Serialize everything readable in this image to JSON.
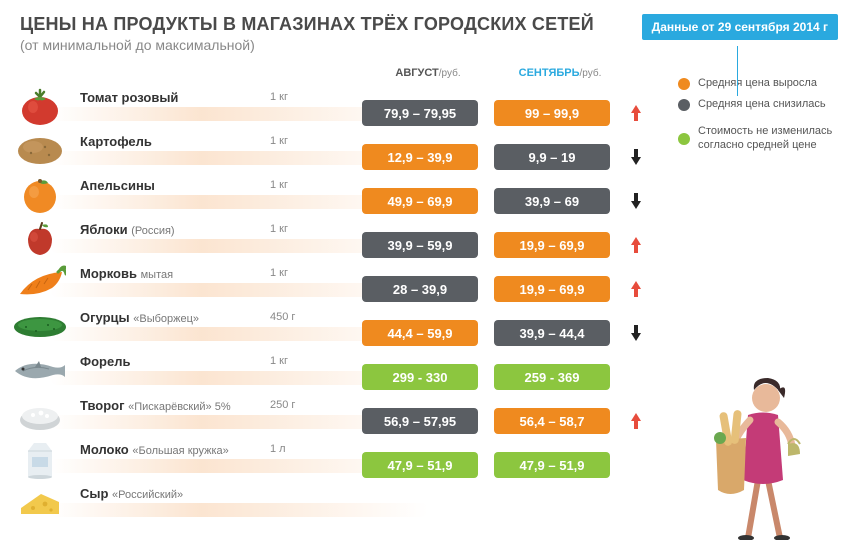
{
  "colors": {
    "grey": "#5a5e63",
    "orange": "#ef8a1f",
    "green": "#8cc63f",
    "blue": "#2aa9df",
    "red_arrow": "#e74c3c",
    "black_arrow": "#222222",
    "title": "#4a4a4a",
    "subtitle": "#888888"
  },
  "header": {
    "title": "ЦЕНЫ НА ПРОДУКТЫ В МАГАЗИНАХ ТРЁХ ГОРОДСКИХ СЕТЕЙ",
    "subtitle": "(от минимальной до максимальной)",
    "date_badge": "Данные от 29 сентября 2014 г"
  },
  "columns": {
    "august": "АВГУСТ",
    "august_unit": "/руб.",
    "september": "СЕНТЯБРЬ",
    "september_unit": "/руб."
  },
  "legend": {
    "up": "Средняя цена выросла",
    "down": "Средняя цена снизилась",
    "same": "Стоимость не изменилась согласно средней цене"
  },
  "rows": [
    {
      "icon": "tomato",
      "name": "Томат розовый",
      "sub": "",
      "unit": "1 кг",
      "aug": "79,9 – 79,95",
      "aug_color": "grey",
      "sep": "99 – 99,9",
      "sep_color": "orange",
      "trend": "up"
    },
    {
      "icon": "potato",
      "name": "Картофель",
      "sub": "",
      "unit": "1 кг",
      "aug": "12,9 – 39,9",
      "aug_color": "orange",
      "sep": "9,9 – 19",
      "sep_color": "grey",
      "trend": "down"
    },
    {
      "icon": "orange",
      "name": "Апельсины",
      "sub": "",
      "unit": "1 кг",
      "aug": "49,9 – 69,9",
      "aug_color": "orange",
      "sep": "39,9 – 69",
      "sep_color": "grey",
      "trend": "down"
    },
    {
      "icon": "apple",
      "name": "Яблоки",
      "sub": "(Россия)",
      "unit": "1 кг",
      "aug": "39,9 – 59,9",
      "aug_color": "grey",
      "sep": "19,9 – 69,9",
      "sep_color": "orange",
      "trend": "up"
    },
    {
      "icon": "carrot",
      "name": "Морковь",
      "sub": "мытая",
      "unit": "1 кг",
      "aug": "28 – 39,9",
      "aug_color": "grey",
      "sep": "19,9 – 69,9",
      "sep_color": "orange",
      "trend": "up"
    },
    {
      "icon": "cucumber",
      "name": "Огурцы",
      "sub": "«Выборжец»",
      "unit": "450 г",
      "aug": "44,4 – 59,9",
      "aug_color": "orange",
      "sep": "39,9 – 44,4",
      "sep_color": "grey",
      "trend": "down"
    },
    {
      "icon": "fish",
      "name": "Форель",
      "sub": "",
      "unit": "1 кг",
      "aug": "299 - 330",
      "aug_color": "green",
      "sep": "259 - 369",
      "sep_color": "green",
      "trend": "none"
    },
    {
      "icon": "curd",
      "name": "Творог",
      "sub": "«Пискарёвский» 5%",
      "unit": "250 г",
      "aug": "56,9 – 57,95",
      "aug_color": "grey",
      "sep": "56,4 – 58,7",
      "sep_color": "orange",
      "trend": "up"
    },
    {
      "icon": "milk",
      "name": "Молоко",
      "sub": "«Большая кружка»",
      "unit": "1 л",
      "aug": "47,9 – 51,9",
      "aug_color": "green",
      "sep": "47,9 – 51,9",
      "sep_color": "green",
      "trend": "none"
    },
    {
      "icon": "cheese",
      "name": "Сыр",
      "sub": "«Российский»",
      "unit": "",
      "aug": "",
      "aug_color": "none",
      "sep": "",
      "sep_color": "none",
      "trend": "none"
    }
  ]
}
